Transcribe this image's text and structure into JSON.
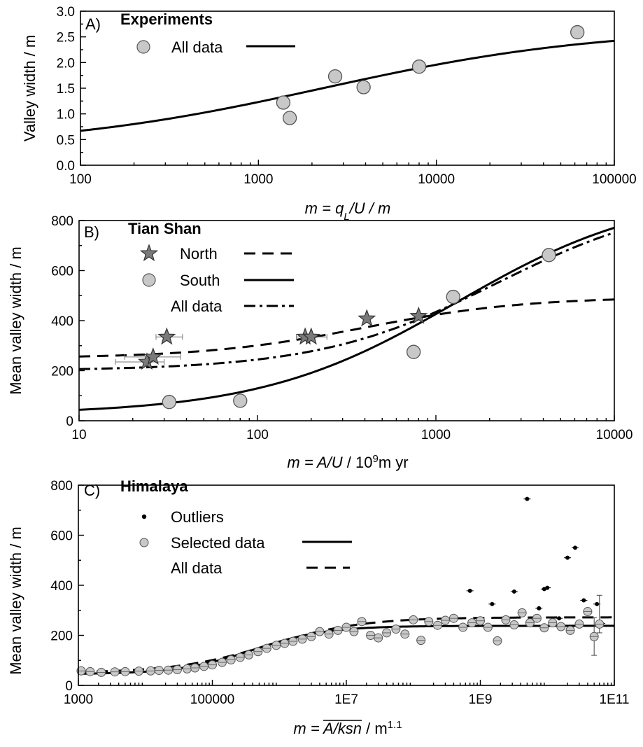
{
  "chart_data": [
    {
      "type": "scatter",
      "panel_label": "A)",
      "title": "Experiments",
      "ylabel": "Valley width / m",
      "xlabel": {
        "pre": "m = q",
        "sub": "L",
        "post": "/U / m"
      },
      "xscale": "log",
      "xlim": [
        100,
        100000
      ],
      "ylim": [
        0,
        3.0
      ],
      "xticks": [
        100,
        1000,
        10000,
        100000
      ],
      "xtick_labels": [
        "100",
        "1000",
        "10000",
        "100000"
      ],
      "yticks": [
        0,
        0.5,
        1.0,
        1.5,
        2.0,
        2.5,
        3.0
      ],
      "ytick_labels": [
        "0.0",
        "0.5",
        "1.0",
        "1.5",
        "2.0",
        "2.5",
        "3.0"
      ],
      "legend": [
        {
          "label": "All data",
          "marker": "circle",
          "line": "solid"
        }
      ],
      "points": [
        {
          "x": 1380,
          "y": 1.22
        },
        {
          "x": 1500,
          "y": 0.92
        },
        {
          "x": 2700,
          "y": 1.73
        },
        {
          "x": 3900,
          "y": 1.52
        },
        {
          "x": 8000,
          "y": 1.92
        },
        {
          "x": 62000,
          "y": 2.59
        }
      ],
      "fit": {
        "curve": "sigmoid-log",
        "low": 0.32,
        "high": 2.68,
        "mid": 2300,
        "width": 0.78,
        "style": "solid"
      }
    },
    {
      "type": "scatter",
      "panel_label": "B)",
      "title": "Tian Shan",
      "ylabel": "Mean valley width / m",
      "xlabel": {
        "pre": "m = A/U",
        "post": " / 10",
        "sup": "9",
        "tail": "m yr"
      },
      "xscale": "log",
      "xlim": [
        10,
        10000
      ],
      "ylim": [
        0,
        800
      ],
      "xticks": [
        10,
        100,
        1000,
        10000
      ],
      "xtick_labels": [
        "10",
        "100",
        "1000",
        "10000"
      ],
      "yticks": [
        0,
        200,
        400,
        600,
        800
      ],
      "ytick_labels": [
        "0",
        "200",
        "400",
        "600",
        "800"
      ],
      "legend": [
        {
          "label": "North",
          "marker": "star",
          "line": "dashed"
        },
        {
          "label": "South",
          "marker": "circle",
          "line": "solid"
        },
        {
          "label": "All data",
          "marker": "none",
          "line": "dashdot"
        }
      ],
      "series": [
        {
          "name": "North",
          "marker": "star",
          "points": [
            {
              "x": 24,
              "y": 235,
              "xerr": [
                16,
                30
              ]
            },
            {
              "x": 26,
              "y": 255,
              "xerr": [
                18,
                37
              ]
            },
            {
              "x": 31,
              "y": 335,
              "xerr": [
                27,
                38
              ]
            },
            {
              "x": 185,
              "y": 335,
              "xerr": [
                165,
                210
              ]
            },
            {
              "x": 200,
              "y": 335,
              "xerr": [
                175,
                245
              ]
            },
            {
              "x": 410,
              "y": 408
            },
            {
              "x": 800,
              "y": 418
            }
          ]
        },
        {
          "name": "South",
          "marker": "circle",
          "points": [
            {
              "x": 32,
              "y": 75
            },
            {
              "x": 80,
              "y": 80
            },
            {
              "x": 750,
              "y": 275
            },
            {
              "x": 1250,
              "y": 495
            },
            {
              "x": 4300,
              "y": 662
            }
          ]
        }
      ],
      "fits": [
        {
          "name": "North",
          "curve": "sigmoid-log",
          "low": 250,
          "high": 495,
          "mid": 400,
          "width": 0.45,
          "style": "dashed"
        },
        {
          "name": "South",
          "curve": "sigmoid-log",
          "low": 25,
          "high": 920,
          "mid": 1300,
          "width": 0.55,
          "style": "solid"
        },
        {
          "name": "All data",
          "curve": "sigmoid-log",
          "low": 200,
          "high": 900,
          "mid": 2200,
          "width": 0.5,
          "style": "dashdot"
        }
      ]
    },
    {
      "type": "scatter",
      "panel_label": "C)",
      "title": "Himalaya",
      "ylabel": "Mean valley width / m",
      "xlabel": {
        "pre": "m = ",
        "over": "A/ksn",
        "post": " / m",
        "sup": "1.1"
      },
      "xscale": "log",
      "xlim": [
        1000,
        100000000000
      ],
      "ylim": [
        0,
        800
      ],
      "xticks": [
        1000,
        100000,
        10000000,
        1000000000,
        100000000000
      ],
      "xtick_labels": [
        "1000",
        "100000",
        "1E7",
        "1E9",
        "1E11"
      ],
      "yticks": [
        0,
        200,
        400,
        600,
        800
      ],
      "ytick_labels": [
        "0",
        "200",
        "400",
        "600",
        "800"
      ],
      "legend": [
        {
          "label": "Outliers",
          "marker": "dot",
          "line": "none"
        },
        {
          "label": "Selected data",
          "marker": "circle",
          "line": "solid"
        },
        {
          "label": "All data",
          "marker": "none",
          "line": "dashed"
        }
      ],
      "series": [
        {
          "name": "Outliers",
          "marker": "dot",
          "points": [
            {
              "x": 700000000.0,
              "y": 378
            },
            {
              "x": 1500000000.0,
              "y": 325
            },
            {
              "x": 3200000000.0,
              "y": 375
            },
            {
              "x": 5000000000.0,
              "y": 745
            },
            {
              "x": 7500000000.0,
              "y": 308
            },
            {
              "x": 9000000000.0,
              "y": 385
            },
            {
              "x": 10000000000.0,
              "y": 390
            },
            {
              "x": 15000000000.0,
              "y": 268
            },
            {
              "x": 20000000000.0,
              "y": 510
            },
            {
              "x": 26000000000.0,
              "y": 550
            },
            {
              "x": 35000000000.0,
              "y": 340
            },
            {
              "x": 55000000000.0,
              "y": 325
            },
            {
              "x": 65000000000.0,
              "y": 248
            }
          ]
        },
        {
          "name": "Selected data",
          "marker": "circle",
          "points": [
            {
              "x": 1100,
              "y": 58
            },
            {
              "x": 1500,
              "y": 55
            },
            {
              "x": 2200,
              "y": 52
            },
            {
              "x": 3500,
              "y": 54
            },
            {
              "x": 5000,
              "y": 55
            },
            {
              "x": 8000,
              "y": 57
            },
            {
              "x": 12000,
              "y": 58
            },
            {
              "x": 16000,
              "y": 60
            },
            {
              "x": 22000,
              "y": 61
            },
            {
              "x": 30000,
              "y": 63
            },
            {
              "x": 42000,
              "y": 66
            },
            {
              "x": 55000,
              "y": 70
            },
            {
              "x": 75000,
              "y": 76
            },
            {
              "x": 100000,
              "y": 82
            },
            {
              "x": 140000,
              "y": 92
            },
            {
              "x": 190000,
              "y": 102
            },
            {
              "x": 260000,
              "y": 112
            },
            {
              "x": 350000,
              "y": 122
            },
            {
              "x": 480000,
              "y": 135
            },
            {
              "x": 650000,
              "y": 148
            },
            {
              "x": 900000,
              "y": 160
            },
            {
              "x": 1200000,
              "y": 168
            },
            {
              "x": 1600000,
              "y": 176
            },
            {
              "x": 2200000,
              "y": 185
            },
            {
              "x": 3000000,
              "y": 195
            },
            {
              "x": 4000000,
              "y": 215
            },
            {
              "x": 5500000,
              "y": 205
            },
            {
              "x": 7500000,
              "y": 220
            },
            {
              "x": 10000000,
              "y": 232
            },
            {
              "x": 13000000,
              "y": 215
            },
            {
              "x": 17000000,
              "y": 255
            },
            {
              "x": 23000000,
              "y": 200
            },
            {
              "x": 30000000,
              "y": 190
            },
            {
              "x": 40000000,
              "y": 210
            },
            {
              "x": 55000000,
              "y": 225
            },
            {
              "x": 75000000,
              "y": 205
            },
            {
              "x": 100000000,
              "y": 262
            },
            {
              "x": 130000000,
              "y": 180
            },
            {
              "x": 170000000,
              "y": 255
            },
            {
              "x": 230000000,
              "y": 240
            },
            {
              "x": 300000000,
              "y": 260
            },
            {
              "x": 400000000,
              "y": 268
            },
            {
              "x": 550000000,
              "y": 232
            },
            {
              "x": 750000000,
              "y": 250
            },
            {
              "x": 1000000000,
              "y": 258
            },
            {
              "x": 1300000000,
              "y": 232
            },
            {
              "x": 1800000000,
              "y": 178
            },
            {
              "x": 2400000000,
              "y": 262
            },
            {
              "x": 3200000000,
              "y": 242
            },
            {
              "x": 4200000000,
              "y": 290
            },
            {
              "x": 5500000000,
              "y": 250
            },
            {
              "x": 7000000000,
              "y": 268
            },
            {
              "x": 9000000000,
              "y": 230
            },
            {
              "x": 12000000000,
              "y": 250
            },
            {
              "x": 16000000000,
              "y": 235
            },
            {
              "x": 22000000000,
              "y": 220
            },
            {
              "x": 30000000000,
              "y": 245
            },
            {
              "x": 40000000000,
              "y": 295
            },
            {
              "x": 50000000000,
              "y": 195,
              "yerr": [
                120,
                270
              ]
            },
            {
              "x": 60000000000,
              "y": 245,
              "yerr": [
                210,
                360
              ]
            }
          ]
        }
      ],
      "fits": [
        {
          "name": "Selected data",
          "curve": "sigmoid-log",
          "low": 45,
          "high": 238,
          "mid": 400000,
          "width": 0.55,
          "style": "solid"
        },
        {
          "name": "All data",
          "curve": "sigmoid-log",
          "low": 50,
          "high": 272,
          "mid": 700000,
          "width": 0.7,
          "style": "dashed"
        }
      ]
    }
  ]
}
